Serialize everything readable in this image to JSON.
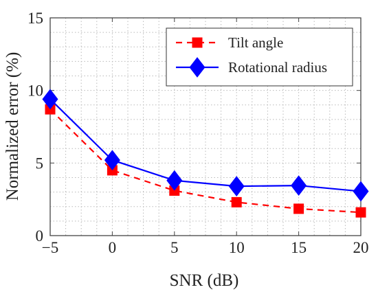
{
  "chart_data": {
    "type": "line",
    "title": "",
    "xlabel": "SNR (dB)",
    "ylabel": "Normalized error (%)",
    "x": [
      -5,
      0,
      5,
      10,
      15,
      20
    ],
    "x_tick_labels": [
      "−5",
      "0",
      "5",
      "10",
      "15",
      "20"
    ],
    "y_ticks": [
      0,
      5,
      10,
      15
    ],
    "y_tick_labels": [
      "0",
      "5",
      "10",
      "15"
    ],
    "xlim": [
      -5,
      20
    ],
    "ylim": [
      0,
      15
    ],
    "grid": true,
    "legend_position": "top-right",
    "series": [
      {
        "name": "Tilt angle",
        "values": [
          8.7,
          4.5,
          3.1,
          2.3,
          1.85,
          1.6
        ],
        "color": "#ff0000",
        "line_style": "dashed",
        "marker": "square"
      },
      {
        "name": "Rotational radius",
        "values": [
          9.4,
          5.2,
          3.8,
          3.4,
          3.45,
          3.05
        ],
        "color": "#0000ff",
        "line_style": "solid",
        "marker": "diamond"
      }
    ]
  }
}
